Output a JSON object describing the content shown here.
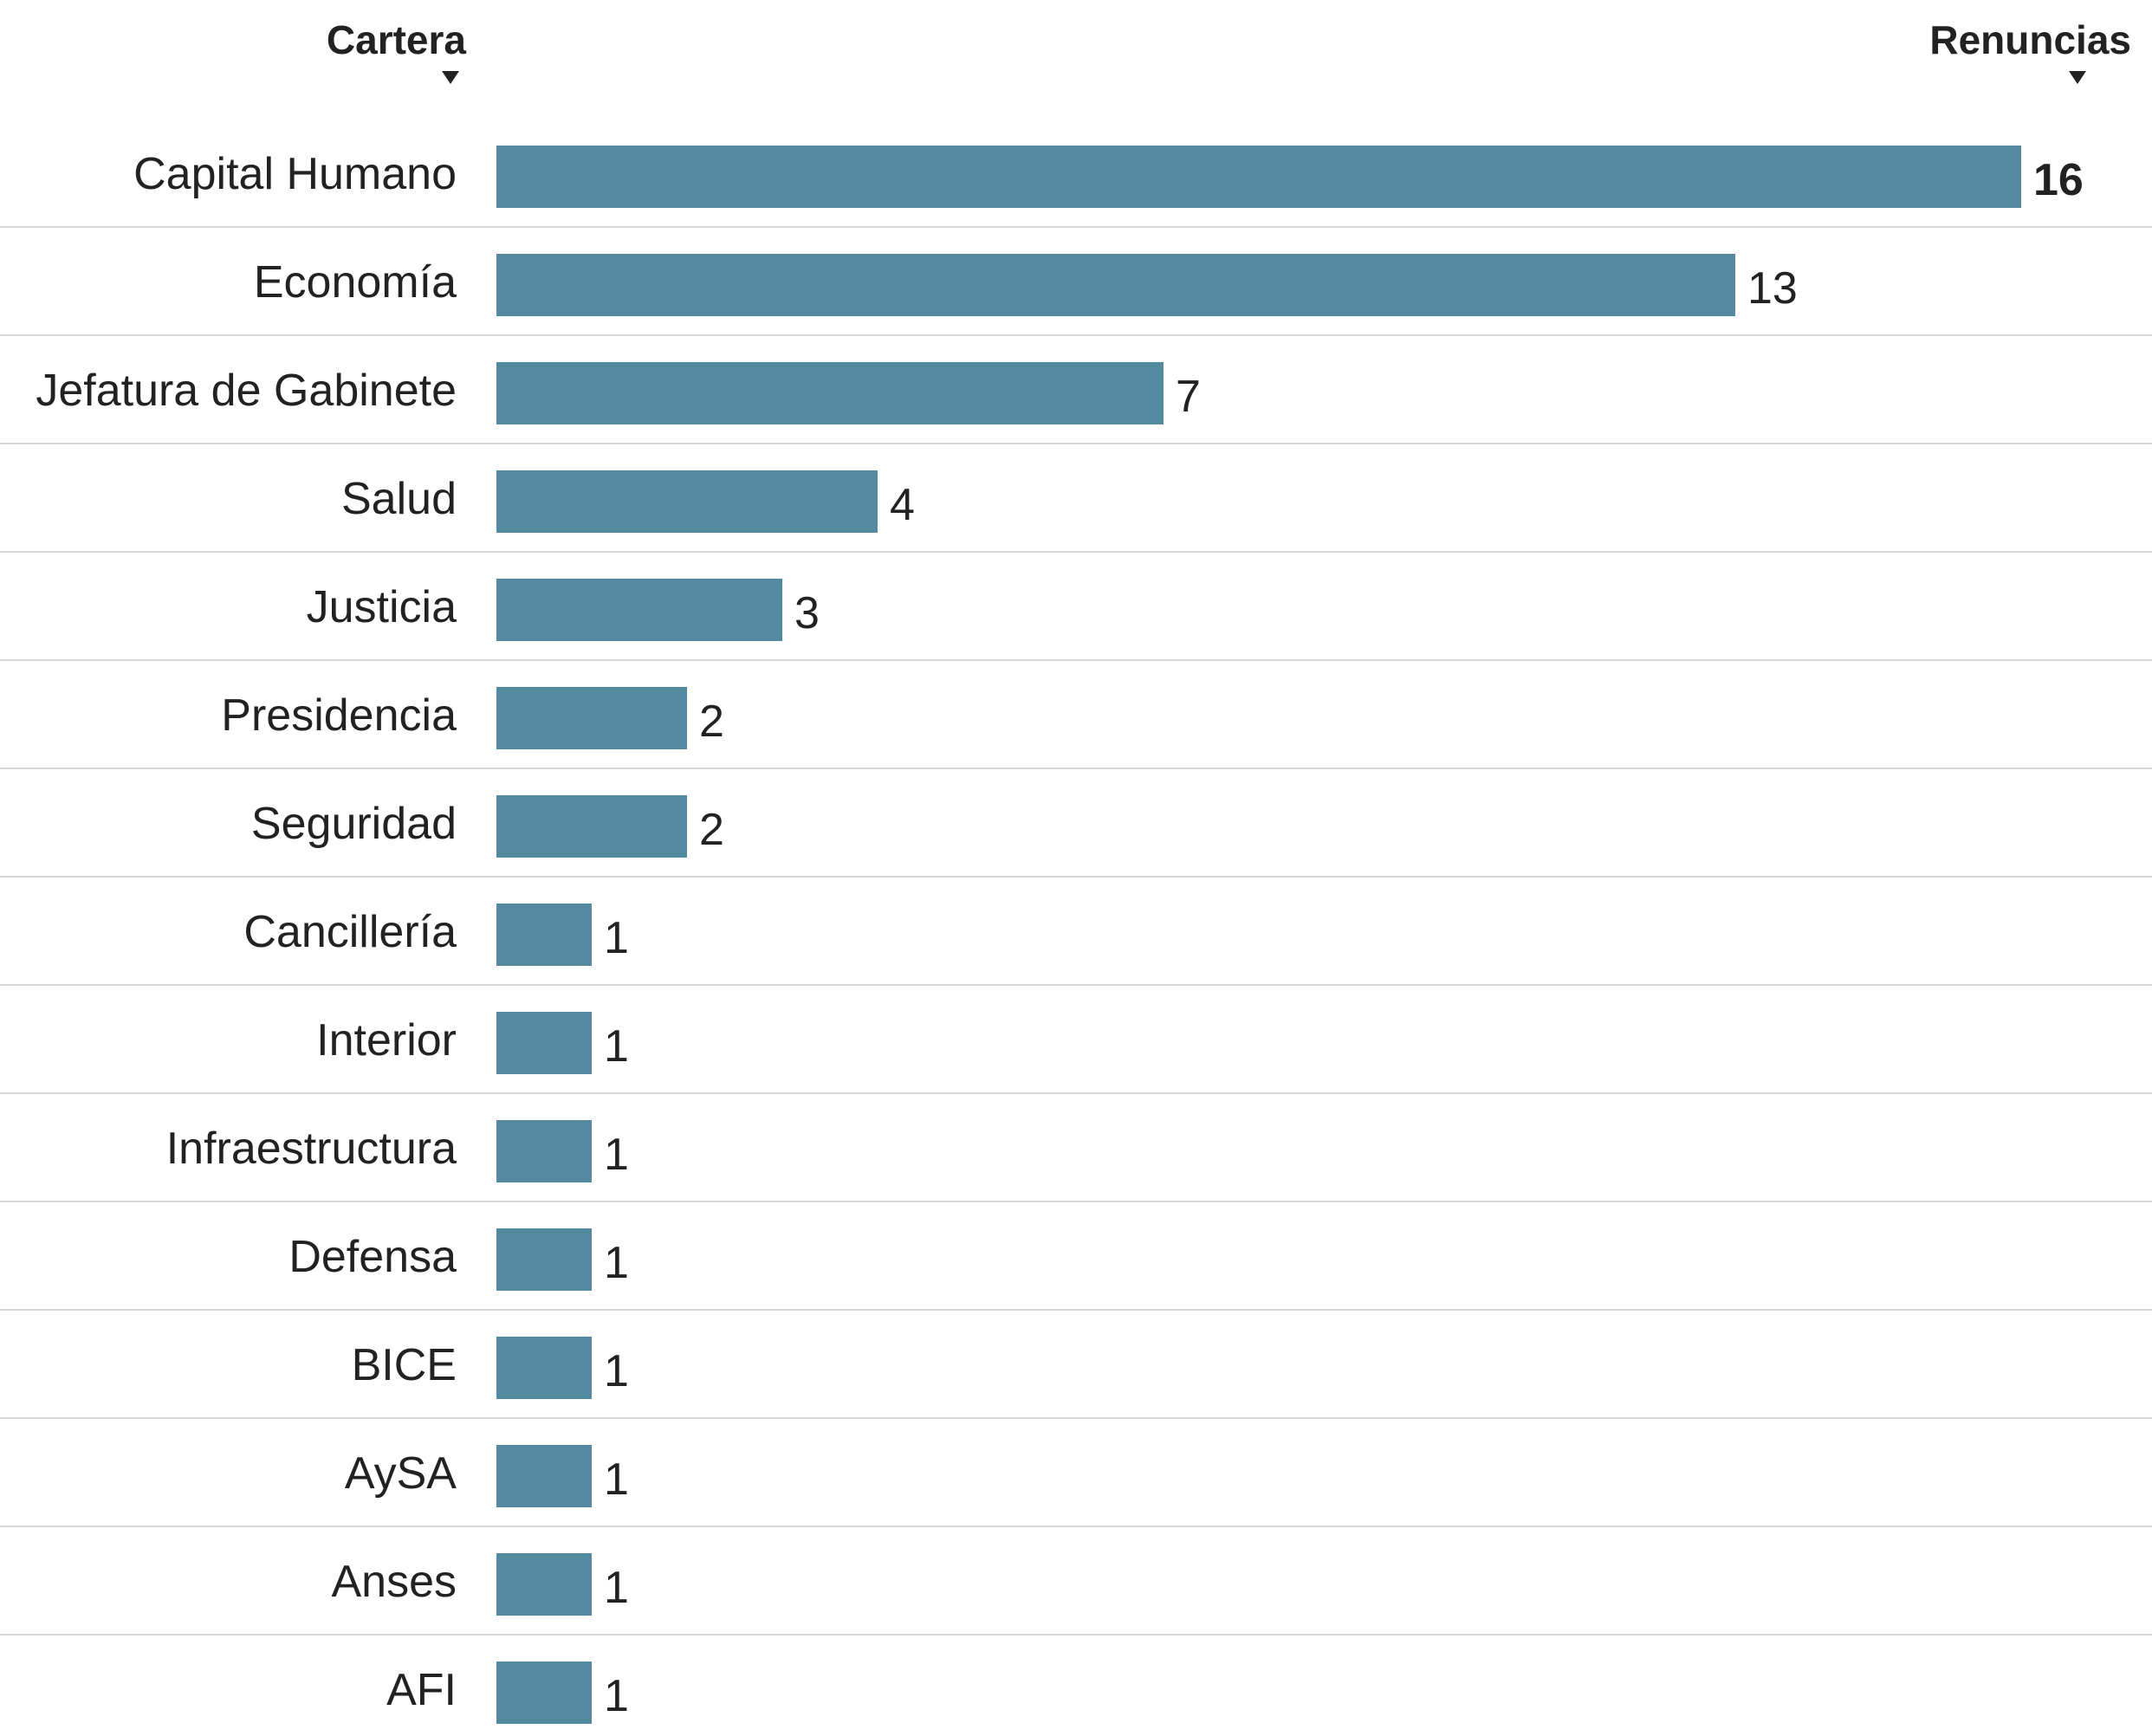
{
  "headers": {
    "category": "Cartera",
    "value": "Renuncias",
    "sort_icon": "sort-down-triangle-icon"
  },
  "colors": {
    "bar": "#538a9f",
    "text": "#222222",
    "divider": "#d6d6d6",
    "background": "#ffffff"
  },
  "chart_data": {
    "type": "bar",
    "orientation": "horizontal",
    "categories": [
      "Capital Humano",
      "Economía",
      "Jefatura de Gabinete",
      "Salud",
      "Justicia",
      "Presidencia",
      "Seguridad",
      "Cancillería",
      "Interior",
      "Infraestructura",
      "Defensa",
      "BICE",
      "AySA",
      "Anses",
      "AFI"
    ],
    "values": [
      16,
      13,
      7,
      4,
      3,
      2,
      2,
      1,
      1,
      1,
      1,
      1,
      1,
      1,
      1
    ],
    "title": "",
    "xlabel": "",
    "ylabel": "",
    "xlim": [
      0,
      16
    ],
    "grid": false,
    "legend": "none",
    "highlight_max_label": true
  }
}
